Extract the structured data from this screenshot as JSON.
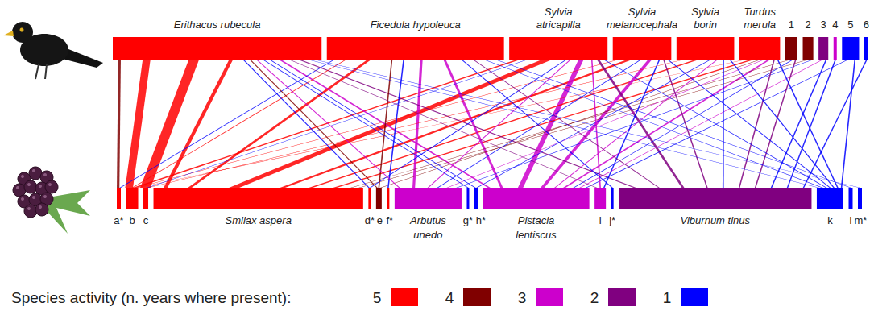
{
  "chart_data": {
    "type": "bipartite",
    "legend": {
      "title": "Species activity (n. years where present):",
      "items": [
        {
          "value": 5,
          "color": "#ff0000"
        },
        {
          "value": 4,
          "color": "#800000"
        },
        {
          "value": 3,
          "color": "#cc00cc"
        },
        {
          "value": 2,
          "color": "#800080"
        },
        {
          "value": 1,
          "color": "#0000ff"
        }
      ]
    },
    "top_nodes": [
      {
        "label": "Erithacus rubecula",
        "size": 257,
        "activity": 5
      },
      {
        "label": "Ficedula hypoleuca",
        "size": 218,
        "activity": 5
      },
      {
        "label": "Sylvia\natricapilla",
        "size": 121,
        "activity": 5
      },
      {
        "label": "Sylvia\nmelanocephala",
        "size": 72,
        "activity": 5
      },
      {
        "label": "Sylvia\nborin",
        "size": 71,
        "activity": 5
      },
      {
        "label": "Turdus\nmerula",
        "size": 50,
        "activity": 5
      },
      {
        "label": "1",
        "size": 15,
        "activity": 4
      },
      {
        "label": "2",
        "size": 13,
        "activity": 4
      },
      {
        "label": "3",
        "size": 12,
        "activity": 2
      },
      {
        "label": "4",
        "size": 4,
        "activity": 3
      },
      {
        "label": "5",
        "size": 21,
        "activity": 1
      },
      {
        "label": "6",
        "size": 5,
        "activity": 1
      }
    ],
    "bottom_nodes": [
      {
        "label": "a*",
        "size": 5,
        "activity": 5
      },
      {
        "label": "b",
        "size": 15,
        "activity": 5
      },
      {
        "label": "c",
        "size": 6,
        "activity": 5
      },
      {
        "label": "Smilax aspera",
        "size": 260,
        "activity": 5
      },
      {
        "label": "d*",
        "size": 3,
        "activity": 5
      },
      {
        "label": "e",
        "size": 7,
        "activity": 4
      },
      {
        "label": "f*",
        "size": 3,
        "activity": 5
      },
      {
        "label": "Arbutus\nunedo",
        "size": 83,
        "activity": 3
      },
      {
        "label": "g*",
        "size": 3,
        "activity": 1
      },
      {
        "label": "h*",
        "size": 4,
        "activity": 1
      },
      {
        "label": "Pistacia\nlentiscus",
        "size": 132,
        "activity": 3
      },
      {
        "label": "i",
        "size": 14,
        "activity": 3
      },
      {
        "label": "j*",
        "size": 3,
        "activity": 1
      },
      {
        "label": "Viburnum tinus",
        "size": 239,
        "activity": 2
      },
      {
        "label": "k",
        "size": 33,
        "activity": 1
      },
      {
        "label": "l",
        "size": 5,
        "activity": 1
      },
      {
        "label": "m*",
        "size": 5,
        "activity": 1
      }
    ],
    "links": [
      {
        "top": 0,
        "bottom": 0,
        "weight": 2,
        "activity": 4
      },
      {
        "top": 0,
        "bottom": 1,
        "weight": 6,
        "activity": 5
      },
      {
        "top": 0,
        "bottom": 2,
        "weight": 8,
        "activity": 5
      },
      {
        "top": 0,
        "bottom": 3,
        "weight": 3,
        "activity": 5
      },
      {
        "top": 0,
        "bottom": 4,
        "weight": 1,
        "activity": 1
      },
      {
        "top": 0,
        "bottom": 5,
        "weight": 1,
        "activity": 4
      },
      {
        "top": 0,
        "bottom": 7,
        "weight": 1,
        "activity": 3
      },
      {
        "top": 0,
        "bottom": 8,
        "weight": 1,
        "activity": 1
      },
      {
        "top": 0,
        "bottom": 9,
        "weight": 1,
        "activity": 1
      },
      {
        "top": 0,
        "bottom": 10,
        "weight": 2,
        "activity": 3
      },
      {
        "top": 0,
        "bottom": 11,
        "weight": 1,
        "activity": 2
      },
      {
        "top": 0,
        "bottom": 13,
        "weight": 2,
        "activity": 2
      },
      {
        "top": 0,
        "bottom": 14,
        "weight": 1,
        "activity": 1
      },
      {
        "top": 0,
        "bottom": 16,
        "weight": 1,
        "activity": 1
      },
      {
        "top": 1,
        "bottom": 0,
        "weight": 1,
        "activity": 1
      },
      {
        "top": 1,
        "bottom": 1,
        "weight": 1,
        "activity": 5
      },
      {
        "top": 1,
        "bottom": 3,
        "weight": 3,
        "activity": 5
      },
      {
        "top": 1,
        "bottom": 5,
        "weight": 1,
        "activity": 4
      },
      {
        "top": 1,
        "bottom": 6,
        "weight": 1,
        "activity": 1
      },
      {
        "top": 1,
        "bottom": 7,
        "weight": 2,
        "activity": 3
      },
      {
        "top": 1,
        "bottom": 10,
        "weight": 2,
        "activity": 3
      },
      {
        "top": 1,
        "bottom": 12,
        "weight": 1,
        "activity": 1
      },
      {
        "top": 1,
        "bottom": 13,
        "weight": 1,
        "activity": 2
      },
      {
        "top": 1,
        "bottom": 14,
        "weight": 1,
        "activity": 1
      },
      {
        "top": 1,
        "bottom": 15,
        "weight": 1,
        "activity": 1
      },
      {
        "top": 2,
        "bottom": 1,
        "weight": 3,
        "activity": 5
      },
      {
        "top": 2,
        "bottom": 2,
        "weight": 1,
        "activity": 1
      },
      {
        "top": 2,
        "bottom": 3,
        "weight": 8,
        "activity": 5
      },
      {
        "top": 2,
        "bottom": 4,
        "weight": 1,
        "activity": 1
      },
      {
        "top": 2,
        "bottom": 7,
        "weight": 1,
        "activity": 3
      },
      {
        "top": 2,
        "bottom": 10,
        "weight": 4,
        "activity": 3
      },
      {
        "top": 2,
        "bottom": 11,
        "weight": 1,
        "activity": 3
      },
      {
        "top": 2,
        "bottom": 13,
        "weight": 2,
        "activity": 2
      },
      {
        "top": 2,
        "bottom": 14,
        "weight": 1,
        "activity": 1
      },
      {
        "top": 3,
        "bottom": 1,
        "weight": 1,
        "activity": 5
      },
      {
        "top": 3,
        "bottom": 3,
        "weight": 4,
        "activity": 5
      },
      {
        "top": 3,
        "bottom": 7,
        "weight": 1,
        "activity": 1
      },
      {
        "top": 3,
        "bottom": 10,
        "weight": 3,
        "activity": 3
      },
      {
        "top": 3,
        "bottom": 11,
        "weight": 1,
        "activity": 1
      },
      {
        "top": 3,
        "bottom": 13,
        "weight": 1,
        "activity": 2
      },
      {
        "top": 3,
        "bottom": 14,
        "weight": 1,
        "activity": 1
      },
      {
        "top": 4,
        "bottom": 2,
        "weight": 1,
        "activity": 5
      },
      {
        "top": 4,
        "bottom": 3,
        "weight": 3,
        "activity": 5
      },
      {
        "top": 4,
        "bottom": 9,
        "weight": 1,
        "activity": 1
      },
      {
        "top": 4,
        "bottom": 10,
        "weight": 1,
        "activity": 3
      },
      {
        "top": 4,
        "bottom": 13,
        "weight": 1,
        "activity": 1
      },
      {
        "top": 4,
        "bottom": 14,
        "weight": 1,
        "activity": 1
      },
      {
        "top": 5,
        "bottom": 1,
        "weight": 1,
        "activity": 5
      },
      {
        "top": 5,
        "bottom": 3,
        "weight": 3,
        "activity": 5
      },
      {
        "top": 5,
        "bottom": 5,
        "weight": 1,
        "activity": 4
      },
      {
        "top": 5,
        "bottom": 7,
        "weight": 1,
        "activity": 3
      },
      {
        "top": 5,
        "bottom": 10,
        "weight": 2,
        "activity": 3
      },
      {
        "top": 5,
        "bottom": 13,
        "weight": 1,
        "activity": 2
      },
      {
        "top": 5,
        "bottom": 14,
        "weight": 1,
        "activity": 1
      },
      {
        "top": 6,
        "bottom": 3,
        "weight": 1,
        "activity": 4
      },
      {
        "top": 6,
        "bottom": 10,
        "weight": 1,
        "activity": 1
      },
      {
        "top": 6,
        "bottom": 13,
        "weight": 1,
        "activity": 2
      },
      {
        "top": 7,
        "bottom": 3,
        "weight": 1,
        "activity": 4
      },
      {
        "top": 7,
        "bottom": 7,
        "weight": 1,
        "activity": 1
      },
      {
        "top": 8,
        "bottom": 10,
        "weight": 1,
        "activity": 3
      },
      {
        "top": 8,
        "bottom": 13,
        "weight": 1,
        "activity": 1
      },
      {
        "top": 9,
        "bottom": 13,
        "weight": 1,
        "activity": 1
      },
      {
        "top": 10,
        "bottom": 10,
        "weight": 1,
        "activity": 1
      },
      {
        "top": 10,
        "bottom": 14,
        "weight": 1,
        "activity": 1
      },
      {
        "top": 11,
        "bottom": 13,
        "weight": 1,
        "activity": 1
      }
    ]
  }
}
